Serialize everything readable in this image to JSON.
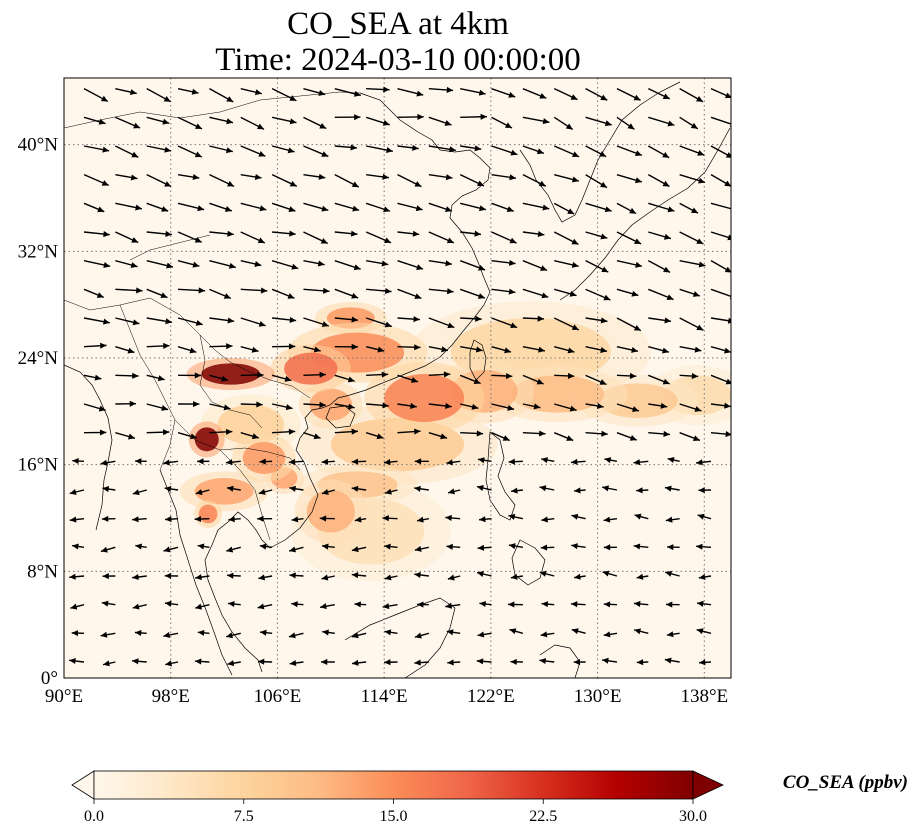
{
  "title": {
    "line1": "CO_SEA at 4km",
    "line2": "Time: 2024-03-10 00:00:00"
  },
  "map": {
    "lon_range": [
      90,
      140
    ],
    "lat_range": [
      0,
      45
    ],
    "gridlines": true,
    "gridline_style": "dotted",
    "x_ticks": [
      {
        "value": 90,
        "label": "90°E"
      },
      {
        "value": 98,
        "label": "98°E"
      },
      {
        "value": 106,
        "label": "106°E"
      },
      {
        "value": 114,
        "label": "114°E"
      },
      {
        "value": 122,
        "label": "122°E"
      },
      {
        "value": 130,
        "label": "130°E"
      },
      {
        "value": 138,
        "label": "138°E"
      }
    ],
    "y_ticks": [
      {
        "value": 0,
        "label": "0°"
      },
      {
        "value": 8,
        "label": "8°N"
      },
      {
        "value": 16,
        "label": "16°N"
      },
      {
        "value": 24,
        "label": "24°N"
      },
      {
        "value": 32,
        "label": "32°N"
      },
      {
        "value": 40,
        "label": "40°N"
      }
    ]
  },
  "colorbar": {
    "title": "CO_SEA (ppbv)",
    "colormap": "OrRd",
    "range": [
      0,
      30
    ],
    "extend": "both",
    "ticks": [
      {
        "value": 0,
        "label": "0.0"
      },
      {
        "value": 7.5,
        "label": "7.5"
      },
      {
        "value": 15,
        "label": "15.0"
      },
      {
        "value": 22.5,
        "label": "22.5"
      },
      {
        "value": 30,
        "label": "30.0"
      }
    ],
    "colors": [
      "#fff7ec",
      "#fee8c8",
      "#fdd49e",
      "#fdbb84",
      "#fc8d59",
      "#ef6548",
      "#d7301f",
      "#b30000",
      "#7f0000"
    ]
  },
  "plume_patches": [
    {
      "lon": 102.5,
      "lat": 22.8,
      "value": 30,
      "rlon": 2.2,
      "rlat": 0.8
    },
    {
      "lon": 100.7,
      "lat": 17.9,
      "value": 30,
      "rlon": 0.9,
      "rlat": 0.9
    },
    {
      "lon": 108.5,
      "lat": 23.2,
      "value": 18,
      "rlon": 2.0,
      "rlat": 1.2
    },
    {
      "lon": 112.0,
      "lat": 24.4,
      "value": 15,
      "rlon": 3.5,
      "rlat": 1.5
    },
    {
      "lon": 111.5,
      "lat": 27.0,
      "value": 14,
      "rlon": 1.8,
      "rlat": 0.8
    },
    {
      "lon": 117.0,
      "lat": 21.0,
      "value": 16,
      "rlon": 3.0,
      "rlat": 1.8
    },
    {
      "lon": 110.0,
      "lat": 20.5,
      "value": 13,
      "rlon": 1.6,
      "rlat": 1.2
    },
    {
      "lon": 121.5,
      "lat": 21.5,
      "value": 12,
      "rlon": 2.5,
      "rlat": 1.6
    },
    {
      "lon": 127.0,
      "lat": 21.3,
      "value": 11,
      "rlon": 3.5,
      "rlat": 1.4
    },
    {
      "lon": 133.0,
      "lat": 20.8,
      "value": 9,
      "rlon": 3.0,
      "rlat": 1.3
    },
    {
      "lon": 137.5,
      "lat": 21.2,
      "value": 6,
      "rlon": 2.5,
      "rlat": 1.5
    },
    {
      "lon": 115.0,
      "lat": 17.5,
      "value": 9,
      "rlon": 5.0,
      "rlat": 2.0
    },
    {
      "lon": 125.0,
      "lat": 24.5,
      "value": 7,
      "rlon": 6.0,
      "rlat": 2.5
    },
    {
      "lon": 105.0,
      "lat": 16.5,
      "value": 14,
      "rlon": 1.6,
      "rlat": 1.2
    },
    {
      "lon": 106.5,
      "lat": 15.0,
      "value": 13,
      "rlon": 1.0,
      "rlat": 0.8
    },
    {
      "lon": 102.0,
      "lat": 14.0,
      "value": 13,
      "rlon": 2.2,
      "rlat": 1.0
    },
    {
      "lon": 100.8,
      "lat": 12.3,
      "value": 16,
      "rlon": 0.7,
      "rlat": 0.7
    },
    {
      "lon": 110.0,
      "lat": 12.5,
      "value": 12,
      "rlon": 1.8,
      "rlat": 1.6
    },
    {
      "lon": 112.0,
      "lat": 14.5,
      "value": 10,
      "rlon": 3.0,
      "rlat": 1.0
    },
    {
      "lon": 104.0,
      "lat": 19.0,
      "value": 8,
      "rlon": 2.5,
      "rlat": 1.5
    },
    {
      "lon": 113.0,
      "lat": 11.0,
      "value": 5,
      "rlon": 4.0,
      "rlat": 2.5
    }
  ]
}
